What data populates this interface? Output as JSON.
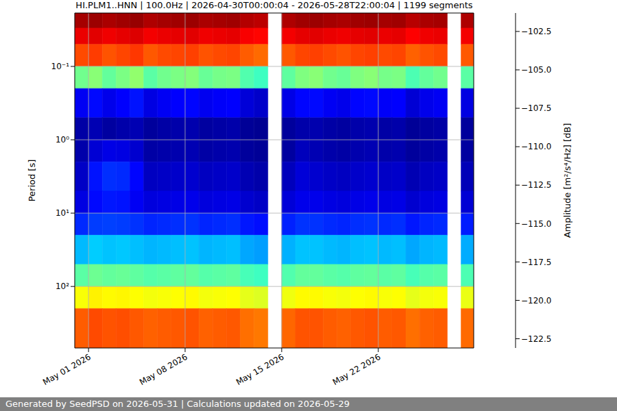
{
  "chart_data": {
    "type": "heatmap",
    "title": "HI.PLM1..HNN | 100.0Hz | 2026-04-30T00:00:04 - 2026-05-28T22:00:04 | 1199 segments",
    "y_label": "Period [s]",
    "footer": "Generated by SeedPSD on 2026-05-31 | Calculations updated on 2026-05-29",
    "x": [
      "2026-04-30",
      "2026-05-01",
      "2026-05-02",
      "2026-05-03",
      "2026-05-04",
      "2026-05-05",
      "2026-05-06",
      "2026-05-07",
      "2026-05-08",
      "2026-05-09",
      "2026-05-10",
      "2026-05-11",
      "2026-05-12",
      "2026-05-13",
      "2026-05-14",
      "2026-05-15",
      "2026-05-16",
      "2026-05-17",
      "2026-05-18",
      "2026-05-19",
      "2026-05-20",
      "2026-05-21",
      "2026-05-22",
      "2026-05-23",
      "2026-05-24",
      "2026-05-25",
      "2026-05-26",
      "2026-05-27",
      "2026-05-28"
    ],
    "y_bins": [
      0.0187,
      0.03,
      0.05,
      0.1,
      0.2,
      0.5,
      1,
      2,
      5,
      10,
      20,
      50,
      100,
      200,
      690
    ],
    "values": [
      [
        -102.1,
        -101.9,
        -102.2,
        -102.0,
        -101.8,
        -102.3,
        -102.1,
        -102.0,
        -101.9,
        -102.2,
        -102.1,
        -102.0,
        -102.4,
        -102.6,
        null,
        -102.3,
        -102.0,
        -101.9,
        -102.1,
        -102.2,
        -102.0,
        -101.9,
        -102.1,
        -102.0,
        -102.5,
        -102.2,
        -102.1,
        null,
        -102.3
      ],
      [
        -103.6,
        -103.4,
        -103.7,
        -103.5,
        -103.3,
        -103.8,
        -103.6,
        -103.5,
        -103.4,
        -103.7,
        -103.6,
        -103.5,
        -103.9,
        -104.1,
        null,
        -103.8,
        -103.5,
        -103.4,
        -103.6,
        -103.7,
        -103.5,
        -103.4,
        -103.6,
        -103.5,
        -104.0,
        -103.7,
        -103.6,
        null,
        -103.8
      ],
      [
        -105.6,
        -105.3,
        -105.8,
        -105.5,
        -105.2,
        -105.9,
        -105.6,
        -105.5,
        -105.4,
        -105.8,
        -105.6,
        -105.5,
        -106.0,
        -106.3,
        null,
        -105.9,
        -105.5,
        -105.4,
        -105.6,
        -105.8,
        -105.5,
        -105.4,
        -105.6,
        -105.5,
        -106.1,
        -105.8,
        -105.6,
        null,
        -105.9
      ],
      [
        -112.5,
        -112.0,
        -112.8,
        -112.3,
        -111.8,
        -113.0,
        -112.5,
        -112.3,
        -112.1,
        -112.7,
        -112.4,
        -112.3,
        -113.2,
        -113.6,
        null,
        -112.9,
        -112.2,
        -112.0,
        -112.5,
        -112.7,
        -112.2,
        -112.0,
        -112.4,
        -112.3,
        -113.3,
        -112.8,
        -112.5,
        null,
        -113.0
      ],
      [
        -120.6,
        -120.2,
        -120.8,
        -120.4,
        -120.0,
        -121.0,
        -120.6,
        -120.4,
        -120.3,
        -120.7,
        -120.5,
        -120.4,
        -121.2,
        -121.5,
        null,
        -120.9,
        -120.3,
        -120.2,
        -120.6,
        -120.8,
        -120.3,
        -120.2,
        -120.5,
        -120.4,
        -121.3,
        -120.8,
        -120.6,
        null,
        -121.0
      ],
      [
        -122.3,
        -122.0,
        -122.4,
        -122.2,
        -122.0,
        -122.5,
        -122.3,
        -122.2,
        -122.1,
        -122.4,
        -122.3,
        -122.2,
        -122.6,
        -122.7,
        null,
        -122.5,
        -122.2,
        -122.1,
        -122.3,
        -122.4,
        -122.2,
        -122.1,
        -122.3,
        -122.2,
        -122.6,
        -122.4,
        -122.3,
        null,
        -122.5
      ],
      [
        -122.2,
        -121.3,
        -120.9,
        -121.0,
        -121.4,
        -122.3,
        -122.2,
        -122.1,
        -122.0,
        -122.3,
        -122.2,
        -122.1,
        -122.5,
        -122.6,
        null,
        -122.4,
        -121.8,
        -122.0,
        -122.2,
        -122.3,
        -122.1,
        -122.0,
        -122.2,
        -122.1,
        -122.5,
        -122.3,
        -122.2,
        null,
        -122.4
      ],
      [
        -121.6,
        -120.0,
        -119.4,
        -119.5,
        -120.3,
        -121.7,
        -121.6,
        -121.5,
        -121.4,
        -121.7,
        -121.6,
        -121.5,
        -122.0,
        -122.2,
        null,
        -121.8,
        -121.2,
        -121.4,
        -121.6,
        -121.7,
        -121.5,
        -121.4,
        -121.6,
        -121.5,
        -122.0,
        -121.7,
        -121.6,
        null,
        -121.9
      ],
      [
        -121.0,
        -120.2,
        -119.9,
        -120.0,
        -120.6,
        -121.1,
        -121.0,
        -120.9,
        -120.8,
        -121.1,
        -121.0,
        -120.9,
        -121.4,
        -121.6,
        null,
        -121.2,
        -120.8,
        -120.8,
        -121.0,
        -121.1,
        -120.9,
        -120.8,
        -121.0,
        -120.9,
        -121.4,
        -121.1,
        -121.0,
        null,
        -121.3
      ],
      [
        -119.5,
        -119.1,
        -119.0,
        -119.1,
        -119.3,
        -119.6,
        -119.5,
        -119.4,
        -119.3,
        -119.6,
        -119.5,
        -119.4,
        -119.9,
        -120.1,
        null,
        -119.7,
        -119.3,
        -119.3,
        -119.5,
        -119.6,
        -119.4,
        -119.3,
        -119.5,
        -119.4,
        -119.9,
        -119.6,
        -119.5,
        null,
        -119.8
      ],
      [
        -116.4,
        -116.0,
        -116.2,
        -116.1,
        -116.3,
        -116.5,
        -116.4,
        -116.3,
        -116.2,
        -116.5,
        -116.4,
        -116.3,
        -116.8,
        -117.0,
        null,
        -116.6,
        -116.2,
        -116.2,
        -116.4,
        -116.5,
        -116.3,
        -116.2,
        -116.4,
        -116.3,
        -116.8,
        -116.5,
        -116.4,
        null,
        -116.7
      ],
      [
        -113.0,
        -112.6,
        -112.8,
        -112.7,
        -112.9,
        -113.1,
        -113.0,
        -112.9,
        -112.8,
        -113.1,
        -113.0,
        -112.9,
        -113.4,
        -113.6,
        null,
        -113.2,
        -112.8,
        -112.8,
        -113.0,
        -113.1,
        -112.9,
        -112.8,
        -113.0,
        -112.9,
        -113.4,
        -113.1,
        -113.0,
        null,
        -113.3
      ],
      [
        -109.6,
        -109.2,
        -109.4,
        -109.3,
        -109.5,
        -109.7,
        -109.6,
        -109.5,
        -109.4,
        -109.7,
        -109.6,
        -109.5,
        -110.0,
        -110.2,
        null,
        -109.8,
        -109.4,
        -109.4,
        -109.6,
        -109.7,
        -109.5,
        -109.4,
        -109.6,
        -109.5,
        -110.0,
        -109.7,
        -109.6,
        null,
        -109.9
      ],
      [
        -106.0,
        -105.6,
        -105.8,
        -105.7,
        -105.9,
        -106.1,
        -106.0,
        -105.9,
        -105.8,
        -106.1,
        -106.0,
        -105.9,
        -106.4,
        -106.6,
        null,
        -106.2,
        -105.8,
        -105.8,
        -106.0,
        -106.1,
        -105.9,
        -105.8,
        -106.0,
        -105.9,
        -106.4,
        -106.1,
        -106.0,
        null,
        -106.3
      ]
    ],
    "xlim": [
      "2026-04-30T00:00:04",
      "2026-05-28T22:00:04"
    ],
    "xticks": [
      {
        "value": "2026-05-01",
        "label": "May 01 2026"
      },
      {
        "value": "2026-05-08",
        "label": "May 08 2026"
      },
      {
        "value": "2026-05-15",
        "label": "May 15 2026"
      },
      {
        "value": "2026-05-22",
        "label": "May 22 2026"
      }
    ],
    "ylim": [
      0.0187,
      690
    ],
    "yticks": [
      {
        "value": 0.1,
        "label": "10⁻¹"
      },
      {
        "value": 1,
        "label": "10⁰"
      },
      {
        "value": 10,
        "label": "10¹"
      },
      {
        "value": 100,
        "label": "10²"
      }
    ],
    "log": "y",
    "grid": true,
    "colorbar": {
      "label": "Amplitude [m²/s⁴/Hz] [dB]",
      "range": [
        -123.1,
        -101.3
      ],
      "ticks": [
        {
          "value": -102.5,
          "label": "−102.5"
        },
        {
          "value": -105,
          "label": "−105.0"
        },
        {
          "value": -107.5,
          "label": "−107.5"
        },
        {
          "value": -110,
          "label": "−110.0"
        },
        {
          "value": -112.5,
          "label": "−112.5"
        },
        {
          "value": -115,
          "label": "−115.0"
        },
        {
          "value": -117.5,
          "label": "−117.5"
        },
        {
          "value": -120,
          "label": "−120.0"
        },
        {
          "value": -122.5,
          "label": "−122.5"
        }
      ]
    }
  }
}
